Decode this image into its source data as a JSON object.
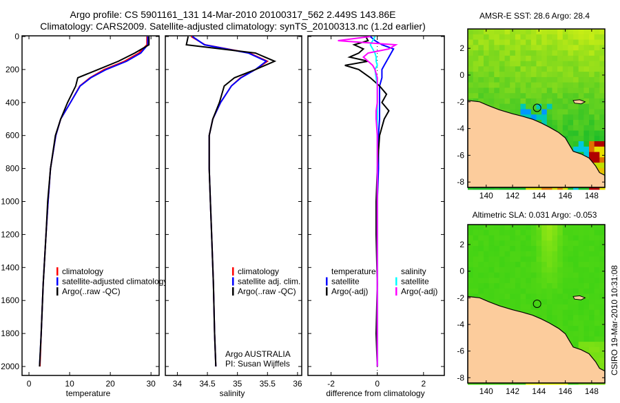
{
  "header": {
    "title_line1": "Argo profile: CS 5901161_131 14-Mar-2010 20100317_562 2.449S 143.86E",
    "title_line2": "Climatology: CARS2009. Satellite-adjusted climatology: synTS_20100313.nc (1.2d earlier)"
  },
  "credits": {
    "program": "Argo AUSTRALIA",
    "pi": "PI: Susan Wijffels",
    "stamp": "CSIRO 19-Mar-2010 10:31:08"
  },
  "colors": {
    "climatology": "#ff0000",
    "satellite": "#0000ff",
    "argo": "#000000",
    "salinity_satellite": "#00ffff",
    "salinity_argo": "#ff00ff",
    "land": "#fccc9c"
  },
  "chart_data": [
    {
      "type": "line",
      "title": "",
      "xlabel": "temperature",
      "ylabel": "",
      "xlim": [
        -1.7,
        32
      ],
      "ylim": [
        0,
        2055
      ],
      "y_inverted": true,
      "xticks": [
        0,
        10,
        20,
        30
      ],
      "yticks": [
        0,
        200,
        400,
        600,
        800,
        1000,
        1200,
        1400,
        1600,
        1800,
        2000
      ],
      "depth": [
        0,
        50,
        100,
        150,
        200,
        250,
        300,
        400,
        500,
        600,
        800,
        1000,
        1200,
        1500,
        1800,
        2000
      ],
      "series": [
        {
          "name": "climatology",
          "color": "#ff0000",
          "values": [
            29,
            29,
            27,
            23.5,
            18.5,
            15,
            12.5,
            10.2,
            7.8,
            6.6,
            5.3,
            4.7,
            4.2,
            3.5,
            3.0,
            2.7
          ]
        },
        {
          "name": "satellite-adjusted climatology",
          "color": "#0000ff",
          "values": [
            29.2,
            29.2,
            27.5,
            24,
            19,
            15.2,
            12.6,
            10.2,
            7.8,
            6.6,
            5.3,
            4.7,
            4.2,
            3.5,
            3.0,
            2.6
          ]
        },
        {
          "name": "Argo(..raw -QC)",
          "color": "#000000",
          "values": [
            29.5,
            29.5,
            26,
            22,
            17,
            12,
            11.5,
            9.5,
            7.8,
            6.5,
            5.3,
            4.6,
            4.2,
            3.5,
            3.0,
            2.6
          ]
        }
      ],
      "legend": "center-left"
    },
    {
      "type": "line",
      "title": "",
      "xlabel": "salinity",
      "ylabel": "",
      "xlim": [
        33.8,
        36.07
      ],
      "ylim": [
        0,
        2055
      ],
      "y_inverted": true,
      "xticks": [
        34,
        34.5,
        35,
        35.5,
        36
      ],
      "depth": [
        0,
        50,
        100,
        150,
        200,
        250,
        300,
        400,
        500,
        600,
        800,
        1000,
        1200,
        1500,
        1800,
        2000
      ],
      "series": [
        {
          "name": "climatology",
          "color": "#ff0000",
          "values": [
            34.23,
            34.46,
            35.2,
            35.5,
            35.3,
            35.05,
            34.9,
            34.72,
            34.59,
            34.53,
            34.53,
            34.55,
            34.57,
            34.6,
            34.62,
            34.64
          ]
        },
        {
          "name": "satellite adj. clim.",
          "color": "#0000ff",
          "values": [
            34.25,
            34.45,
            35.18,
            35.48,
            35.3,
            35.06,
            34.9,
            34.72,
            34.59,
            34.53,
            34.53,
            34.55,
            34.57,
            34.6,
            34.62,
            34.64
          ]
        },
        {
          "name": "Argo(..raw -QC)",
          "color": "#000000",
          "values": [
            34.18,
            34.15,
            35.3,
            35.62,
            35.3,
            34.95,
            34.78,
            34.7,
            34.59,
            34.53,
            34.53,
            34.55,
            34.57,
            34.6,
            34.62,
            34.64
          ]
        }
      ],
      "legend": "center-right"
    },
    {
      "type": "line",
      "title": "",
      "xlabel": "difference from climatology",
      "ylabel": "",
      "xlim": [
        -3.0,
        2.9
      ],
      "ylim": [
        0,
        2055
      ],
      "y_inverted": true,
      "xticks": [
        -2,
        0,
        2
      ],
      "depth": [
        0,
        25,
        50,
        75,
        100,
        125,
        150,
        175,
        200,
        250,
        300,
        350,
        400,
        450,
        500,
        600,
        800,
        1000,
        1200,
        1500,
        1800,
        2000
      ],
      "legend_headers": [
        "temperature",
        "salinity"
      ],
      "series": [
        {
          "name": "satellite",
          "group": "temperature",
          "color": "#0000ff",
          "values": [
            -0.3,
            -0.1,
            0.2,
            0.7,
            0.6,
            0.5,
            0.4,
            0.3,
            0.2,
            0.2,
            0.1,
            0.1,
            0.1,
            0.1,
            0.1,
            0.05,
            0.05,
            0,
            0,
            0,
            0,
            0
          ]
        },
        {
          "name": "Argo(-adj)",
          "group": "temperature",
          "color": "#000000",
          "values": [
            -0.5,
            -0.4,
            -1.0,
            -0.6,
            -0.8,
            -1.2,
            -0.4,
            -1.4,
            -0.8,
            -0.3,
            0.1,
            0.4,
            0.2,
            0.5,
            0.3,
            0.1,
            0,
            -0.05,
            -0.05,
            0,
            -0.05,
            0
          ]
        },
        {
          "name": "satellite",
          "group": "salinity",
          "color": "#00ffff",
          "values": [
            -0.1,
            -0.2,
            -0.3,
            -0.2,
            -0.1,
            -0.05,
            -0.05,
            0,
            -0.1,
            -0.05,
            0,
            0,
            0,
            0,
            0,
            0,
            0,
            0,
            0,
            0,
            0,
            0
          ]
        },
        {
          "name": "Argo(-adj)",
          "group": "salinity",
          "color": "#ff00ff",
          "values": [
            -0.3,
            -1.7,
            0.8,
            0.5,
            -0.4,
            -0.6,
            -0.4,
            -0.2,
            -0.1,
            0,
            0,
            0,
            0,
            -0.05,
            -0.05,
            0,
            0,
            0,
            0,
            0,
            0,
            0
          ]
        }
      ],
      "legend": "center"
    },
    {
      "type": "heatmap",
      "title": "AMSR-E SST: 28.6 Argo: 28.4",
      "xlim": [
        138.6,
        149
      ],
      "ylim": [
        -8.4,
        3.45
      ],
      "xticks": [
        140,
        142,
        144,
        146,
        148
      ],
      "yticks": [
        2,
        0,
        -2,
        -4,
        -6,
        -8
      ],
      "argo_position": {
        "lon": 143.86,
        "lat": -2.449
      }
    },
    {
      "type": "heatmap",
      "title": "Altimetric SLA: 0.031 Argo: -0.053",
      "xlim": [
        138.6,
        149
      ],
      "ylim": [
        -8.4,
        3.5
      ],
      "xticks": [
        140,
        142,
        144,
        146,
        148
      ],
      "yticks": [
        2,
        0,
        -2,
        -4,
        -6,
        -8
      ],
      "argo_position": {
        "lon": 143.86,
        "lat": -2.449
      }
    }
  ]
}
